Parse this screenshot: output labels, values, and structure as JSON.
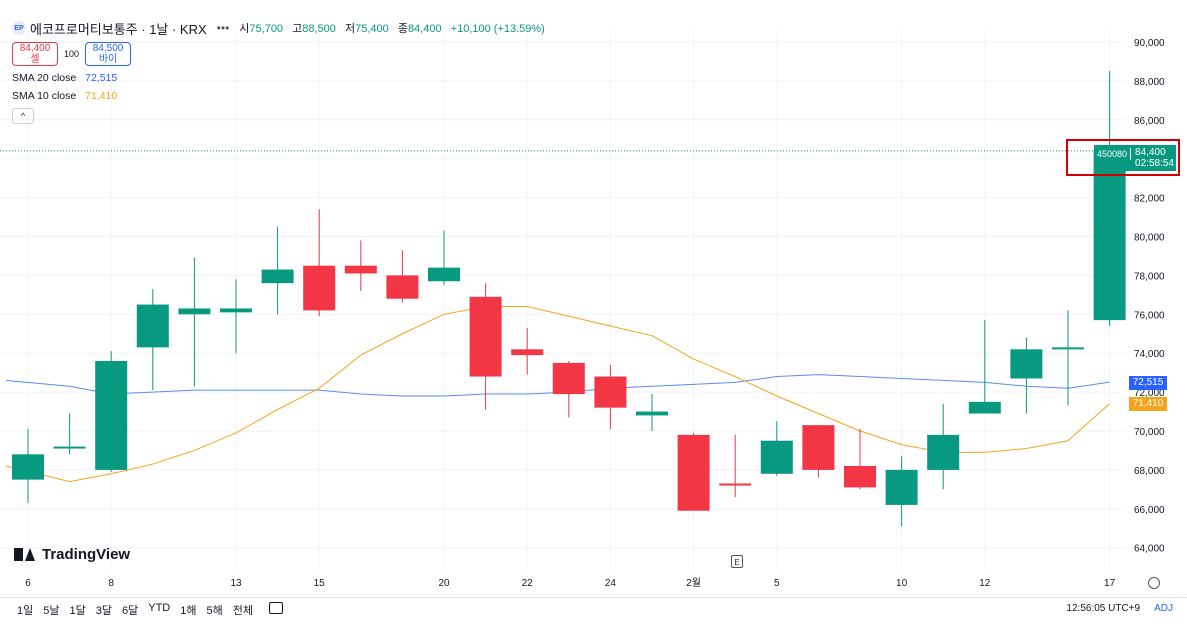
{
  "header": {
    "symbol_badge": "EP",
    "title": "에코프로머티보통주 · 1날 · KRX",
    "more": "•••",
    "ohlc": [
      {
        "label": "시",
        "value": "75,700"
      },
      {
        "label": "고",
        "value": "88,500"
      },
      {
        "label": "저",
        "value": "75,400"
      },
      {
        "label": "종",
        "value": "84,400"
      }
    ],
    "change": "+10,100 (+13.59%)"
  },
  "trade": {
    "sell_price": "84,400",
    "sell_label": "셀",
    "qty": "100",
    "buy_price": "84,500",
    "buy_label": "바이"
  },
  "indicators": [
    {
      "label": "SMA 20 close",
      "value": "72,515",
      "color": "#2962ff"
    },
    {
      "label": "SMA 10 close",
      "value": "71,410",
      "color": "#f7a21b"
    }
  ],
  "collapse_icon": "chevron-up-icon",
  "logo_text": "TradingView",
  "price_tag": {
    "symbol": "450080",
    "price": "84,400",
    "countdown": "02:58:54"
  },
  "axis_badges": {
    "sma20": "72,515",
    "sma10": "71,410"
  },
  "event_marker": "E",
  "toolbar": {
    "ranges": [
      "1일",
      "5날",
      "1달",
      "3달",
      "6달",
      "YTD",
      "1해",
      "5해",
      "전체"
    ],
    "timezone": "12:56:05 UTC+9",
    "adj": "ADJ"
  },
  "colors": {
    "up": "#089981",
    "down": "#f23645",
    "sma20": "#5b8def",
    "sma10": "#f7a21b"
  },
  "chart_data": {
    "type": "candlestick",
    "y_ticks": [
      "90,000",
      "88,000",
      "86,000",
      "84,000",
      "82,000",
      "80,000",
      "78,000",
      "76,000",
      "74,000",
      "72,000",
      "70,000",
      "68,000",
      "66,000",
      "64,000"
    ],
    "ylim": [
      63000,
      91000
    ],
    "x_labels": [
      {
        "i": 0,
        "label": "6"
      },
      {
        "i": 2,
        "label": "8"
      },
      {
        "i": 5,
        "label": "13"
      },
      {
        "i": 7,
        "label": "15"
      },
      {
        "i": 10,
        "label": "20"
      },
      {
        "i": 12,
        "label": "22"
      },
      {
        "i": 14,
        "label": "24"
      },
      {
        "i": 16,
        "label": "2월"
      },
      {
        "i": 18,
        "label": "5"
      },
      {
        "i": 21,
        "label": "10"
      },
      {
        "i": 23,
        "label": "12"
      },
      {
        "i": 26,
        "label": "17"
      }
    ],
    "candles": [
      {
        "o": 67500,
        "h": 70100,
        "l": 66300,
        "c": 68800
      },
      {
        "o": 69100,
        "h": 70900,
        "l": 68800,
        "c": 69200
      },
      {
        "o": 68000,
        "h": 74100,
        "l": 67900,
        "c": 73600
      },
      {
        "o": 74300,
        "h": 77300,
        "l": 72100,
        "c": 76500
      },
      {
        "o": 76000,
        "h": 78900,
        "l": 72300,
        "c": 76300
      },
      {
        "o": 76100,
        "h": 77800,
        "l": 74000,
        "c": 76300
      },
      {
        "o": 77600,
        "h": 80500,
        "l": 76000,
        "c": 78300
      },
      {
        "o": 78500,
        "h": 81400,
        "l": 75900,
        "c": 76200
      },
      {
        "o": 78500,
        "h": 79800,
        "l": 77200,
        "c": 78100
      },
      {
        "o": 78000,
        "h": 79300,
        "l": 76600,
        "c": 76800
      },
      {
        "o": 77700,
        "h": 80300,
        "l": 77500,
        "c": 78400
      },
      {
        "o": 76900,
        "h": 77600,
        "l": 71100,
        "c": 72800
      },
      {
        "o": 74200,
        "h": 75300,
        "l": 72900,
        "c": 73900
      },
      {
        "o": 73500,
        "h": 73600,
        "l": 70700,
        "c": 71900
      },
      {
        "o": 72800,
        "h": 73400,
        "l": 70100,
        "c": 71200
      },
      {
        "o": 70800,
        "h": 71900,
        "l": 70000,
        "c": 71000
      },
      {
        "o": 69800,
        "h": 69900,
        "l": 65900,
        "c": 65900
      },
      {
        "o": 67300,
        "h": 69800,
        "l": 66600,
        "c": 67200
      },
      {
        "o": 67800,
        "h": 70500,
        "l": 67700,
        "c": 69500
      },
      {
        "o": 70300,
        "h": 70300,
        "l": 67600,
        "c": 68000
      },
      {
        "o": 68200,
        "h": 70100,
        "l": 67000,
        "c": 67100
      },
      {
        "o": 66200,
        "h": 68700,
        "l": 65100,
        "c": 68000
      },
      {
        "o": 68000,
        "h": 71400,
        "l": 67000,
        "c": 69800
      },
      {
        "o": 70900,
        "h": 75700,
        "l": 70900,
        "c": 71500
      },
      {
        "o": 72700,
        "h": 74800,
        "l": 70900,
        "c": 74200
      },
      {
        "o": 74200,
        "h": 76200,
        "l": 71300,
        "c": 74300
      },
      {
        "o": 75700,
        "h": 88500,
        "l": 75400,
        "c": 84400
      }
    ],
    "sma20": [
      72600,
      72300,
      71900,
      72000,
      72100,
      72100,
      72100,
      72100,
      71900,
      71800,
      71800,
      71900,
      71900,
      72000,
      72200,
      72300,
      72400,
      72500,
      72800,
      72900,
      72800,
      72700,
      72600,
      72500,
      72300,
      72200,
      72515
    ],
    "sma10": [
      68200,
      67400,
      67800,
      68300,
      69000,
      69900,
      71100,
      72200,
      73900,
      75000,
      76000,
      76400,
      76400,
      75900,
      75400,
      74900,
      73700,
      72800,
      71800,
      70900,
      70000,
      69300,
      68900,
      68900,
      69100,
      69500,
      71410
    ],
    "current_price": 84400
  }
}
